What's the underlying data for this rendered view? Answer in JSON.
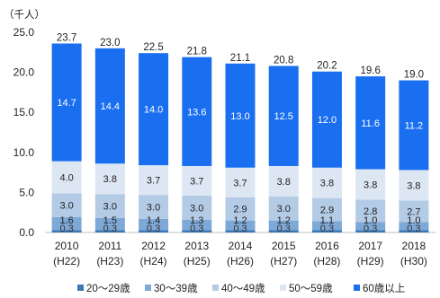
{
  "chart_data": {
    "type": "bar",
    "stacked": true,
    "unit_label": "（千人）",
    "categories": [
      "2010",
      "2011",
      "2012",
      "2013",
      "2014",
      "2015",
      "2016",
      "2017",
      "2018"
    ],
    "subcategories": [
      "(H22)",
      "(H23)",
      "(H24)",
      "(H25)",
      "(H26)",
      "(H27)",
      "(H28)",
      "(H29)",
      "(H30)"
    ],
    "totals": [
      "23.7",
      "23.0",
      "22.5",
      "21.8",
      "21.1",
      "20.8",
      "20.2",
      "19.6",
      "19.0"
    ],
    "ylim": [
      0,
      25
    ],
    "yticks": [
      "0.0",
      "5.0",
      "10.0",
      "15.0",
      "20.0",
      "25.0"
    ],
    "grid": false,
    "legend_position": "bottom",
    "series": [
      {
        "name": "20～29歳",
        "color": "#3a78b8",
        "label_color": "#333333",
        "values": [
          0.3,
          0.3,
          0.3,
          0.3,
          0.3,
          0.3,
          0.3,
          0.3,
          0.3
        ],
        "labels": [
          "0.3",
          "0.3",
          "0.3",
          "0.3",
          "0.3",
          "0.3",
          "0.3",
          "0.3",
          "0.3"
        ]
      },
      {
        "name": "30～39歳",
        "color": "#7ea8d6",
        "label_color": "#222222",
        "values": [
          1.6,
          1.5,
          1.4,
          1.3,
          1.2,
          1.2,
          1.1,
          1.0,
          1.0
        ],
        "labels": [
          "1.6",
          "1.5",
          "1.4",
          "1.3",
          "1.2",
          "1.2",
          "1.1",
          "1.0",
          "1.0"
        ]
      },
      {
        "name": "40～49歳",
        "color": "#b4cbe6",
        "label_color": "#222222",
        "values": [
          3.0,
          3.0,
          3.0,
          3.0,
          2.9,
          3.0,
          2.9,
          2.8,
          2.7
        ],
        "labels": [
          "3.0",
          "3.0",
          "3.0",
          "3.0",
          "2.9",
          "3.0",
          "2.9",
          "2.8",
          "2.7"
        ]
      },
      {
        "name": "50～59歳",
        "color": "#dde7f3",
        "label_color": "#222222",
        "values": [
          4.0,
          3.8,
          3.7,
          3.7,
          3.7,
          3.8,
          3.8,
          3.8,
          3.8
        ],
        "labels": [
          "4.0",
          "3.8",
          "3.7",
          "3.7",
          "3.7",
          "3.8",
          "3.8",
          "3.8",
          "3.8"
        ]
      },
      {
        "name": "60歳以上",
        "color": "#1a6ff0",
        "label_color": "#ffffff",
        "values": [
          14.7,
          14.4,
          14.0,
          13.6,
          13.0,
          12.5,
          12.0,
          11.6,
          11.2
        ],
        "labels": [
          "14.7",
          "14.4",
          "14.0",
          "13.6",
          "13.0",
          "12.5",
          "12.0",
          "11.6",
          "11.2"
        ]
      }
    ]
  }
}
